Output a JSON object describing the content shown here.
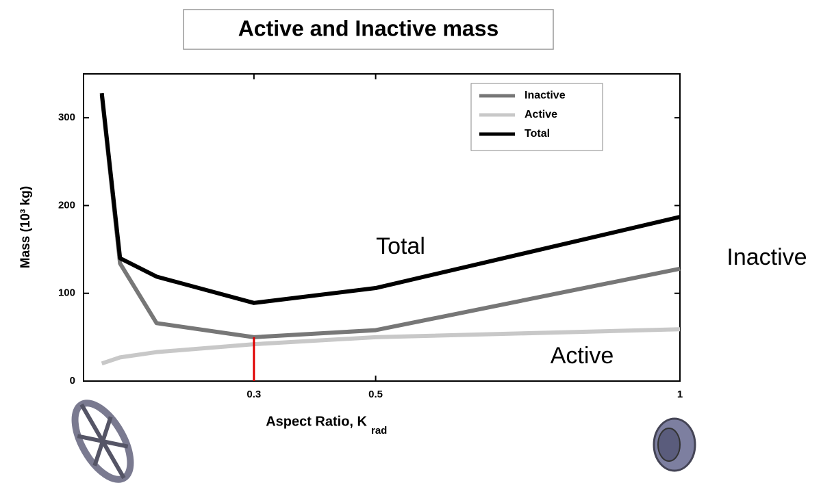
{
  "chart_data": {
    "type": "line",
    "title": "Active and Inactive mass",
    "y_label": "Mass (10³ kg)",
    "x_label": "Aspect Ratio, K",
    "x_label_subscript": "rad",
    "x": [
      0.05,
      0.08,
      0.14,
      0.3,
      0.5,
      1.0
    ],
    "series": [
      {
        "name": "Inactive",
        "color": "#777777",
        "values": [
          326,
          134,
          66,
          50,
          58,
          128
        ]
      },
      {
        "name": "Active",
        "color": "#c8c8c8",
        "values": [
          20,
          27,
          33,
          42,
          50,
          59
        ]
      },
      {
        "name": "Total",
        "color": "#000000",
        "values": [
          328,
          140,
          119,
          89,
          106,
          187
        ]
      }
    ],
    "xlim": [
      0.02,
      1.0
    ],
    "xticks": [
      0.3,
      0.5,
      1
    ],
    "ylim": [
      0,
      350
    ],
    "yticks": [
      0,
      100,
      200,
      300
    ],
    "grid": false,
    "legend_position": "upper right",
    "highlight": {
      "x": 0.3,
      "y": 50,
      "color": "#e00000"
    },
    "annotations": [
      {
        "text": "Total",
        "series": 2
      },
      {
        "text": "Active",
        "series": 1
      },
      {
        "text": "Inactive",
        "series": 0
      }
    ]
  }
}
